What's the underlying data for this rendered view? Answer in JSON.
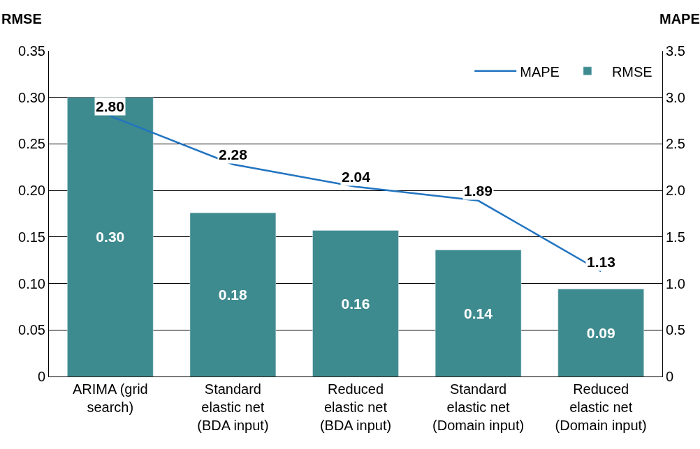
{
  "chart_data": {
    "type": "bar",
    "ylabel": "RMSE",
    "y2label": "MAPE",
    "categories": [
      "ARIMA (grid search)",
      "Standard elastic net (BDA input)",
      "Reduced elastic net (BDA input)",
      "Standard elastic net (Domain input)",
      "Reduced elastic net (Domain input)"
    ],
    "series": [
      {
        "name": "RMSE",
        "color": "#3d8b8f",
        "values": [
          0.3,
          0.176,
          0.157,
          0.136,
          0.094
        ],
        "value_labels": [
          "0.30",
          "0.18",
          "0.16",
          "0.14",
          "0.09"
        ]
      },
      {
        "name": "MAPE",
        "type": "line",
        "axis": "y2",
        "color": "#2274c0",
        "values": [
          2.8,
          2.28,
          2.04,
          1.89,
          1.13
        ],
        "value_labels": [
          "2.80",
          "2.28",
          "2.04",
          "1.89",
          "1.13"
        ]
      }
    ],
    "ylim": [
      0,
      0.35
    ],
    "yticks": [
      {
        "value": 0,
        "label": "0"
      },
      {
        "value": 0.05,
        "label": "0.05"
      },
      {
        "value": 0.1,
        "label": "0.10"
      },
      {
        "value": 0.15,
        "label": "0.15"
      },
      {
        "value": 0.2,
        "label": "0.20"
      },
      {
        "value": 0.25,
        "label": "0.25"
      },
      {
        "value": 0.3,
        "label": "0.30"
      },
      {
        "value": 0.35,
        "label": "0.35"
      }
    ],
    "y2lim": [
      0,
      3.5
    ],
    "y2ticks": [
      {
        "value": 0,
        "label": "0"
      },
      {
        "value": 0.5,
        "label": "0.5"
      },
      {
        "value": 1,
        "label": "1.0"
      },
      {
        "value": 1.5,
        "label": "1.5"
      },
      {
        "value": 2,
        "label": "2.0"
      },
      {
        "value": 2.5,
        "label": "2.5"
      },
      {
        "value": 3,
        "label": "3.0"
      },
      {
        "value": 3.5,
        "label": "3.5"
      }
    ],
    "grid": "y",
    "legend": "top right"
  }
}
